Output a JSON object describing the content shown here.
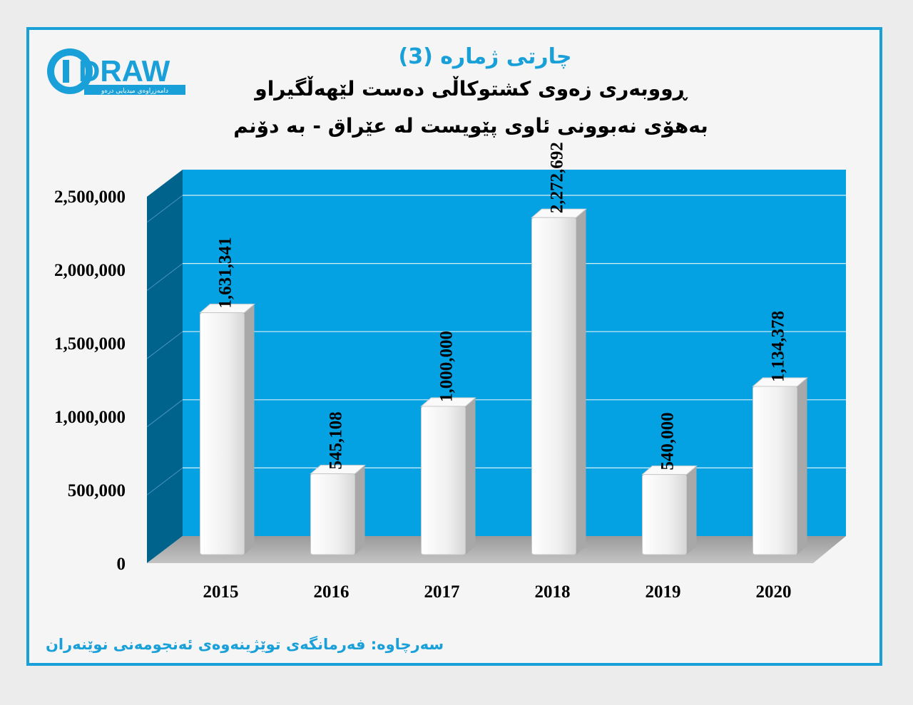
{
  "logo": {
    "text": "DRAW",
    "tagline": "دامەزراوەی میدیایی درەو"
  },
  "header": {
    "title": "چارتی ژمارە (3)",
    "subtitle_line1": "ڕووبەری زەوی کشتوکاڵی دەست لێهەڵگیراو",
    "subtitle_line2": "بەهۆی نەبوونی ئاوی پێویست لە عێراق - بە دۆنم"
  },
  "footer": {
    "source": "سەرچاوە: فەرمانگەی توێژینەوەی ئەنجومەنی نوێنەران"
  },
  "colors": {
    "accent": "#1aa0d8",
    "plot_back": "#04a2e2",
    "plot_side": "#00638c",
    "bar": "#f2f2f2"
  },
  "chart_data": {
    "type": "bar",
    "categories": [
      "2015",
      "2016",
      "2017",
      "2018",
      "2019",
      "2020"
    ],
    "values": [
      1631341,
      545108,
      1000000,
      2272692,
      540000,
      1134378
    ],
    "data_labels": [
      "1,631,341",
      "545,108",
      "1,000,000",
      "2,272,692",
      "540,000",
      "1,134,378"
    ],
    "y_ticks": [
      0,
      500000,
      1000000,
      1500000,
      2000000,
      2500000
    ],
    "y_tick_labels": [
      "0",
      "500,000",
      "1,000,000",
      "1,500,000",
      "2,000,000",
      "2,500,000"
    ],
    "ylim": [
      0,
      2500000
    ],
    "grid": true,
    "legend": "none"
  }
}
